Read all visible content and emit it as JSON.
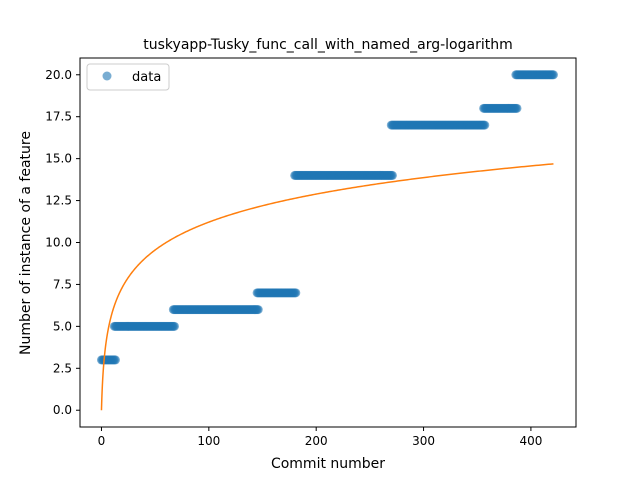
{
  "chart_data": {
    "type": "scatter",
    "title": "tuskyapp-Tusky_func_call_with_named_arg-logarithm",
    "xlabel": "Commit number",
    "ylabel": "Number of instance of a feature",
    "xlim": [
      -20,
      442
    ],
    "ylim": [
      -1,
      21
    ],
    "xticks": [
      0,
      100,
      200,
      300,
      400
    ],
    "xtick_labels": [
      "0",
      "100",
      "200",
      "300",
      "400"
    ],
    "yticks": [
      0,
      2.5,
      5,
      7.5,
      10,
      12.5,
      15,
      17.5,
      20
    ],
    "ytick_labels": [
      "0.0",
      "2.5",
      "5.0",
      "7.5",
      "10.0",
      "12.5",
      "15.0",
      "17.5",
      "20.0"
    ],
    "legend": {
      "position": "upper-left",
      "entries": [
        "data"
      ]
    },
    "grid": false,
    "colors": {
      "data": "#1f77b4",
      "fit": "#ff7f0e"
    },
    "series": [
      {
        "name": "data",
        "kind": "scatter",
        "segments": [
          {
            "x_start": 0,
            "x_end": 13,
            "y": 3
          },
          {
            "x_start": 12,
            "x_end": 68,
            "y": 5
          },
          {
            "x_start": 67,
            "x_end": 146,
            "y": 6
          },
          {
            "x_start": 145,
            "x_end": 181,
            "y": 7
          },
          {
            "x_start": 180,
            "x_end": 271,
            "y": 14
          },
          {
            "x_start": 270,
            "x_end": 357,
            "y": 17
          },
          {
            "x_start": 356,
            "x_end": 387,
            "y": 18
          },
          {
            "x_start": 386,
            "x_end": 421,
            "y": 20
          }
        ]
      },
      {
        "kind": "line",
        "model": "y = a * ln(x + 1)",
        "a": 2.43,
        "x_range": [
          0,
          421
        ]
      }
    ]
  }
}
